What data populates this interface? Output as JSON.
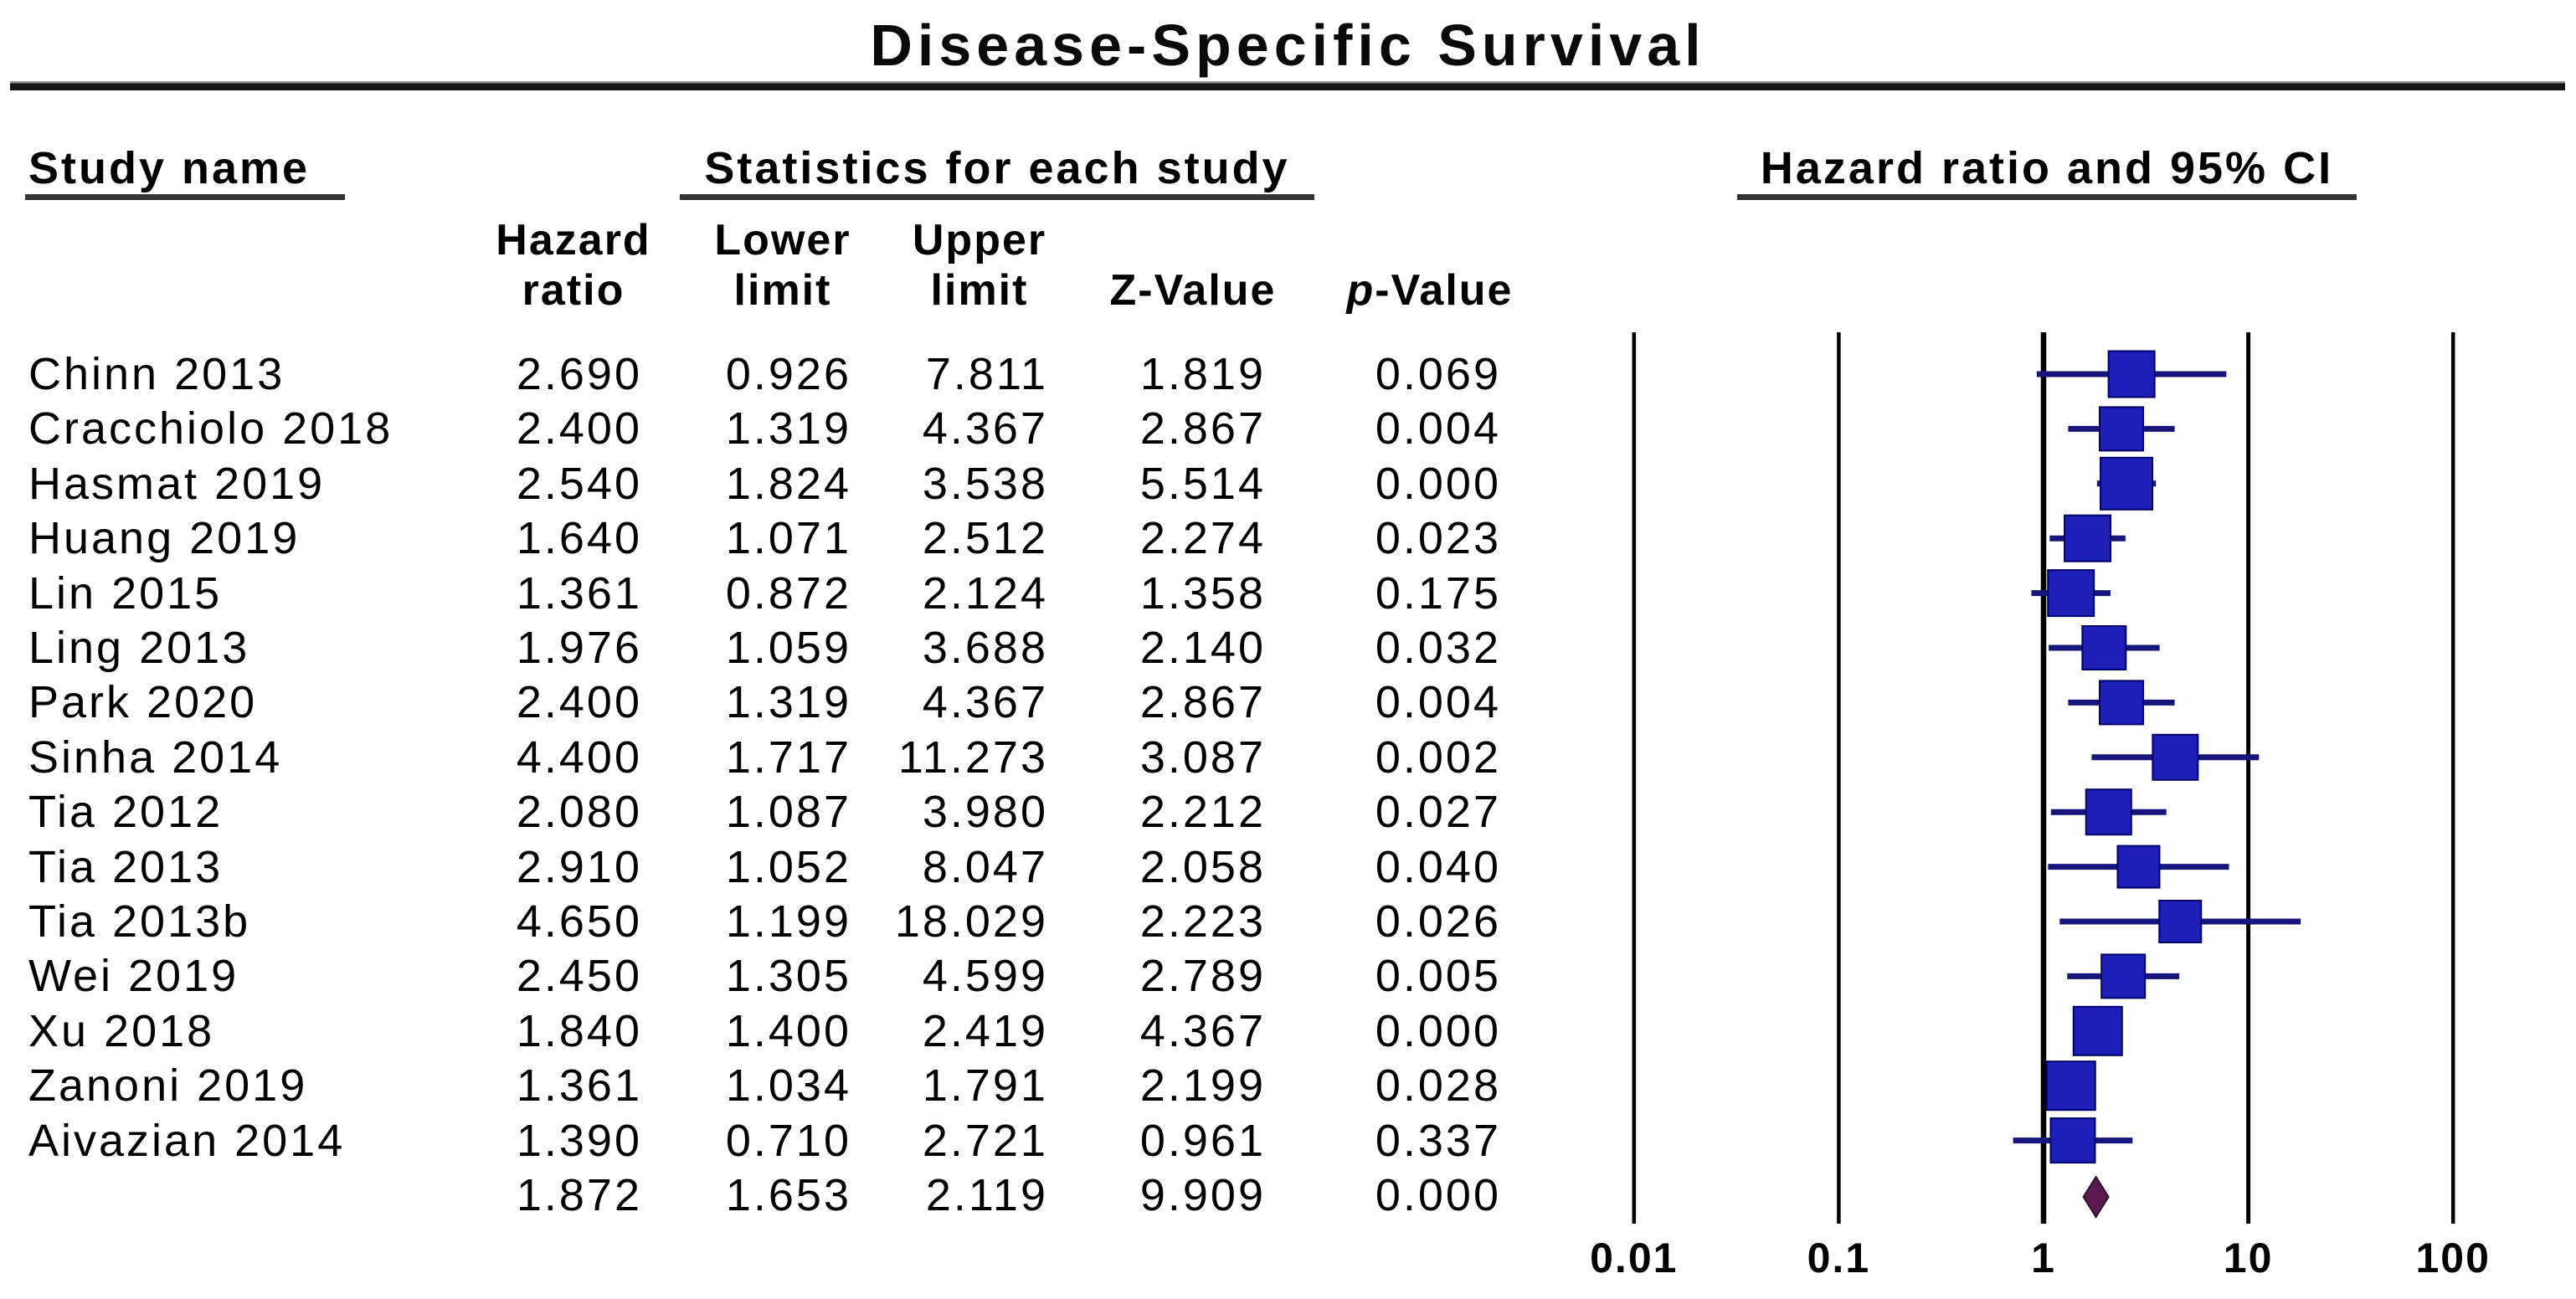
{
  "title": "Disease-Specific Survival",
  "section_headers": {
    "study": "Study name",
    "statistics": "Statistics for each study",
    "plot": "Hazard ratio and 95% CI"
  },
  "column_headers": {
    "hazard_line1": "Hazard",
    "hazard_line2": "ratio",
    "lower_line1": "Lower",
    "lower_line2": "limit",
    "upper_line1": "Upper",
    "upper_line2": "limit",
    "z": "Z-Value",
    "p_italic": "p",
    "p_rest": "-Value"
  },
  "chart_data": {
    "type": "forest",
    "title": "Disease-Specific Survival",
    "effect_measure": "Hazard ratio",
    "x_scale": "log10",
    "x_ticks": [
      0.01,
      0.1,
      1,
      10,
      100
    ],
    "x_tick_labels": [
      "0.01",
      "0.1",
      "1",
      "10",
      "100"
    ],
    "columns": [
      "Hazard ratio",
      "Lower limit",
      "Upper limit",
      "Z-Value",
      "p-Value"
    ],
    "studies": [
      {
        "name": "Chinn 2013",
        "hazard_ratio": 2.69,
        "lower_limit": 0.926,
        "upper_limit": 7.811,
        "z_value": 1.819,
        "p_value": 0.069,
        "marker_size": 55
      },
      {
        "name": "Cracchiolo 2018",
        "hazard_ratio": 2.4,
        "lower_limit": 1.319,
        "upper_limit": 4.367,
        "z_value": 2.867,
        "p_value": 0.004,
        "marker_size": 52
      },
      {
        "name": "Hasmat 2019",
        "hazard_ratio": 2.54,
        "lower_limit": 1.824,
        "upper_limit": 3.538,
        "z_value": 5.514,
        "p_value": 0.0,
        "marker_size": 62
      },
      {
        "name": "Huang 2019",
        "hazard_ratio": 1.64,
        "lower_limit": 1.071,
        "upper_limit": 2.512,
        "z_value": 2.274,
        "p_value": 0.023,
        "marker_size": 55
      },
      {
        "name": "Lin 2015",
        "hazard_ratio": 1.361,
        "lower_limit": 0.872,
        "upper_limit": 2.124,
        "z_value": 1.358,
        "p_value": 0.175,
        "marker_size": 55
      },
      {
        "name": "Ling 2013",
        "hazard_ratio": 1.976,
        "lower_limit": 1.059,
        "upper_limit": 3.688,
        "z_value": 2.14,
        "p_value": 0.032,
        "marker_size": 52
      },
      {
        "name": "Park 2020",
        "hazard_ratio": 2.4,
        "lower_limit": 1.319,
        "upper_limit": 4.367,
        "z_value": 2.867,
        "p_value": 0.004,
        "marker_size": 52
      },
      {
        "name": "Sinha 2014",
        "hazard_ratio": 4.4,
        "lower_limit": 1.717,
        "upper_limit": 11.273,
        "z_value": 3.087,
        "p_value": 0.002,
        "marker_size": 54
      },
      {
        "name": "Tia 2012",
        "hazard_ratio": 2.08,
        "lower_limit": 1.087,
        "upper_limit": 3.98,
        "z_value": 2.212,
        "p_value": 0.027,
        "marker_size": 54
      },
      {
        "name": "Tia 2013",
        "hazard_ratio": 2.91,
        "lower_limit": 1.052,
        "upper_limit": 8.047,
        "z_value": 2.058,
        "p_value": 0.04,
        "marker_size": 50
      },
      {
        "name": "Tia 2013b",
        "hazard_ratio": 4.65,
        "lower_limit": 1.199,
        "upper_limit": 18.029,
        "z_value": 2.223,
        "p_value": 0.026,
        "marker_size": 50
      },
      {
        "name": "Wei 2019",
        "hazard_ratio": 2.45,
        "lower_limit": 1.305,
        "upper_limit": 4.599,
        "z_value": 2.789,
        "p_value": 0.005,
        "marker_size": 52
      },
      {
        "name": "Xu 2018",
        "hazard_ratio": 1.84,
        "lower_limit": 1.4,
        "upper_limit": 2.419,
        "z_value": 4.367,
        "p_value": 0.0,
        "marker_size": 58
      },
      {
        "name": "Zanoni 2019",
        "hazard_ratio": 1.361,
        "lower_limit": 1.034,
        "upper_limit": 1.791,
        "z_value": 2.199,
        "p_value": 0.028,
        "marker_size": 58
      },
      {
        "name": "Aivazian 2014",
        "hazard_ratio": 1.39,
        "lower_limit": 0.71,
        "upper_limit": 2.721,
        "z_value": 0.961,
        "p_value": 0.337,
        "marker_size": 53
      }
    ],
    "overall": {
      "name": "",
      "hazard_ratio": 1.872,
      "lower_limit": 1.653,
      "upper_limit": 2.119,
      "z_value": 9.909,
      "p_value": 0.0,
      "marker": "diamond"
    },
    "colors": {
      "square": "#1e1eb8",
      "square_border": "#00006b",
      "ci_line": "#15157d",
      "diamond": "#5a1950",
      "diamond_border": "#30102a",
      "axis_line": "#000000",
      "text": "#000000"
    }
  }
}
